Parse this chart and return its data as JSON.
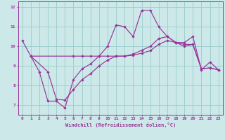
{
  "bg_color": "#cce8e8",
  "grid_color": "#99cccc",
  "line_color": "#993399",
  "xlabel": "Windchill (Refroidissement éolien,°C)",
  "ylim": [
    6.5,
    12.3
  ],
  "xlim": [
    -0.5,
    23.5
  ],
  "yticks": [
    7,
    8,
    9,
    10,
    11,
    12
  ],
  "xticks": [
    0,
    1,
    2,
    3,
    4,
    5,
    6,
    7,
    8,
    9,
    10,
    11,
    12,
    13,
    14,
    15,
    16,
    17,
    18,
    19,
    20,
    21,
    22,
    23
  ],
  "line1_x": [
    0,
    1,
    2,
    3,
    4,
    5,
    6,
    7,
    8,
    9,
    10,
    11,
    12,
    13,
    14,
    15,
    16,
    17,
    18,
    19,
    20,
    21,
    22,
    23
  ],
  "line1_y": [
    10.3,
    9.5,
    8.7,
    7.2,
    7.2,
    6.85,
    8.3,
    8.85,
    9.1,
    9.5,
    10.0,
    11.1,
    11.0,
    10.5,
    11.85,
    11.85,
    11.0,
    10.5,
    10.2,
    10.2,
    10.5,
    8.8,
    9.2,
    8.8
  ],
  "line2_x": [
    1,
    6,
    7,
    8,
    9,
    10,
    11,
    12,
    13,
    14,
    15,
    16,
    17,
    18,
    19,
    20,
    21,
    22,
    23
  ],
  "line2_y": [
    9.5,
    9.5,
    9.5,
    9.5,
    9.5,
    9.5,
    9.5,
    9.5,
    9.55,
    9.65,
    9.78,
    10.1,
    10.3,
    10.2,
    10.1,
    10.1,
    8.85,
    8.9,
    8.8
  ],
  "line3_x": [
    1,
    3,
    4,
    5,
    6,
    7,
    8,
    9,
    10,
    11,
    12,
    13,
    14,
    15,
    16,
    17,
    18,
    19,
    20,
    21,
    22,
    23
  ],
  "line3_y": [
    9.5,
    8.7,
    7.3,
    7.25,
    7.8,
    8.3,
    8.6,
    9.0,
    9.3,
    9.5,
    9.5,
    9.6,
    9.8,
    10.0,
    10.4,
    10.5,
    10.2,
    10.0,
    10.1,
    8.85,
    8.9,
    8.8
  ]
}
